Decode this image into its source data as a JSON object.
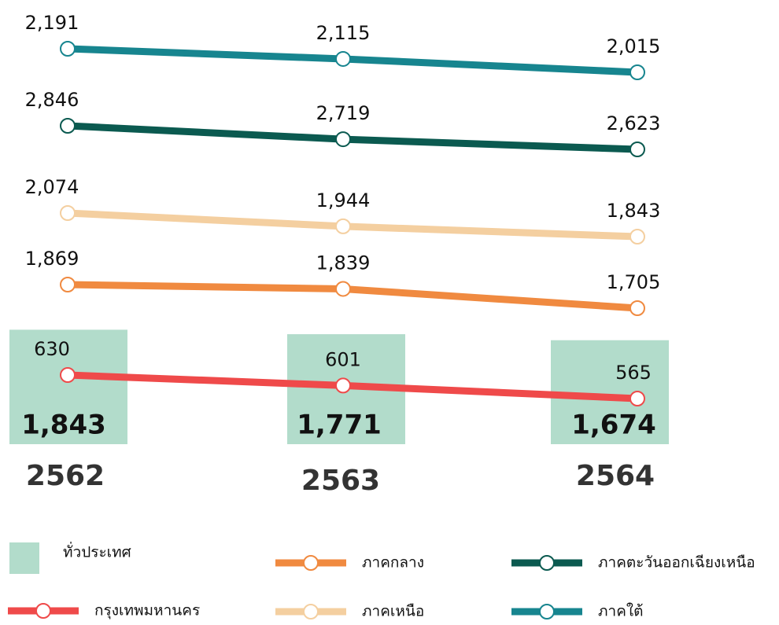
{
  "chart_data": {
    "type": "bar-line",
    "categories": [
      "2562",
      "2563",
      "2564"
    ],
    "bar_series": {
      "name": "ทั่วประเทศ",
      "color": "#b2dccb",
      "values": [
        1843,
        1771,
        1674
      ],
      "value_labels": [
        "1,843",
        "1,771",
        "1,674"
      ]
    },
    "series": [
      {
        "name": "กรุงเทพมหานคร",
        "color": "#ef4a4a",
        "values": [
          630,
          601,
          565
        ]
      },
      {
        "name": "ภาคกลาง",
        "color": "#f08a40",
        "values": [
          1869,
          1839,
          1705
        ],
        "value_labels": [
          "1,869",
          "1,839",
          "1,705"
        ]
      },
      {
        "name": "ภาคเหนือ",
        "color": "#f4cfa0",
        "values": [
          2074,
          1944,
          1843
        ],
        "value_labels": [
          "2,074",
          "1,944",
          "1,843"
        ]
      },
      {
        "name": "ภาคตะวันออกเฉียงเหนือ",
        "color": "#0b5a50",
        "values": [
          2846,
          2719,
          2623
        ],
        "value_labels": [
          "2,846",
          "2,719",
          "2,623"
        ]
      },
      {
        "name": "ภาคใต้",
        "color": "#17858f",
        "values": [
          2191,
          2115,
          2015
        ],
        "value_labels": [
          "2,191",
          "2,115",
          "2,015"
        ]
      }
    ]
  }
}
